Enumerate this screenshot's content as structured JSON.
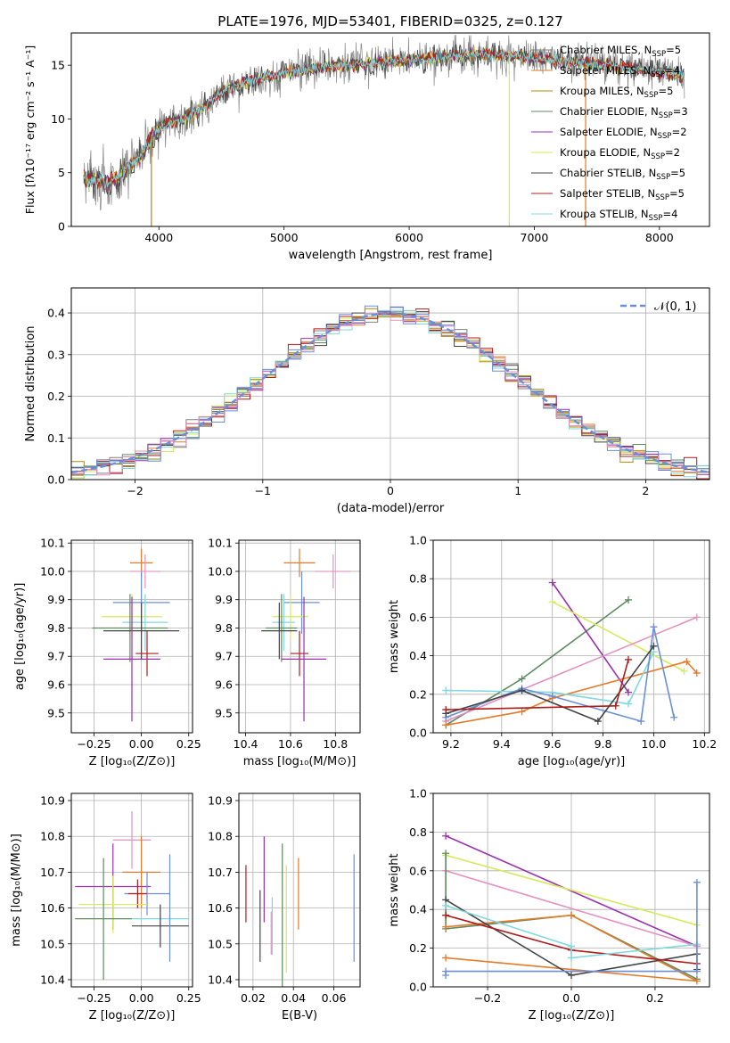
{
  "figure_title": "PLATE=1976, MJD=53401, FIBERID=0325, z=0.127",
  "colors": {
    "Chabrier MILES": "#808080",
    "Salpeter MILES": "#e37b2a",
    "Kroupa MILES": "#b8860b",
    "Chabrier ELODIE": "#5f8a5f",
    "Salpeter ELODIE": "#9b30b0",
    "Kroupa ELODIE": "#d4ea5a",
    "Chabrier STELIB": "#444444",
    "Salpeter STELIB": "#b01c1c",
    "Kroupa STELIB": "#7fd8e0",
    "blue": "#6a8fd8",
    "pink": "#e58fc0",
    "orange": "#e37b2a"
  },
  "chart_data": [
    {
      "id": "spectrum",
      "type": "line",
      "xlabel": "wavelength [Angstrom, rest frame]",
      "ylabel": "Flux [fλ10⁻¹⁷ erg cm⁻² s⁻¹ A⁻¹]",
      "xlim": [
        3300,
        8400
      ],
      "ylim": [
        0,
        18
      ],
      "xticks": [
        4000,
        5000,
        6000,
        7000,
        8000
      ],
      "yticks": [
        0,
        5,
        10,
        15
      ],
      "grid": false,
      "legend_position": "top-right",
      "continuum_knots": [
        [
          3400,
          4.5
        ],
        [
          3500,
          4.2
        ],
        [
          3600,
          4.0
        ],
        [
          3700,
          4.8
        ],
        [
          3850,
          6.5
        ],
        [
          3950,
          8.5
        ],
        [
          4050,
          9.5
        ],
        [
          4200,
          10.0
        ],
        [
          4350,
          11.0
        ],
        [
          4500,
          12.5
        ],
        [
          4700,
          13.5
        ],
        [
          4900,
          14.0
        ],
        [
          5100,
          14.5
        ],
        [
          5300,
          14.8
        ],
        [
          5500,
          15.0
        ],
        [
          5700,
          15.2
        ],
        [
          6000,
          15.5
        ],
        [
          6300,
          15.8
        ],
        [
          6600,
          16.0
        ],
        [
          7000,
          15.7
        ],
        [
          7400,
          15.2
        ],
        [
          7800,
          14.7
        ],
        [
          8200,
          14.0
        ]
      ],
      "series": [
        {
          "name": "Chabrier MILES, N$_{SSP}$=5",
          "label_main": "Chabrier MILES, N",
          "label_sub": "SSP",
          "label_tail": "=5",
          "color_key": "Chabrier MILES"
        },
        {
          "name": "Salpeter MILES, N$_{SSP}$=4",
          "label_main": "Salpeter MILES, N",
          "label_sub": "SSP",
          "label_tail": "=4",
          "color_key": "Salpeter MILES"
        },
        {
          "name": "Kroupa MILES, N$_{SSP}$=5",
          "label_main": "Kroupa MILES, N",
          "label_sub": "SSP",
          "label_tail": "=5",
          "color_key": "Kroupa MILES"
        },
        {
          "name": "Chabrier ELODIE, N$_{SSP}$=3",
          "label_main": "Chabrier ELODIE, N",
          "label_sub": "SSP",
          "label_tail": "=3",
          "color_key": "Chabrier ELODIE"
        },
        {
          "name": "Salpeter ELODIE, N$_{SSP}$=2",
          "label_main": "Salpeter ELODIE, N",
          "label_sub": "SSP",
          "label_tail": "=2",
          "color_key": "Salpeter ELODIE"
        },
        {
          "name": "Kroupa ELODIE, N$_{SSP}$=2",
          "label_main": "Kroupa ELODIE, N",
          "label_sub": "SSP",
          "label_tail": "=2",
          "color_key": "Kroupa ELODIE"
        },
        {
          "name": "Chabrier STELIB, N$_{SSP}$=5",
          "label_main": "Chabrier STELIB, N",
          "label_sub": "SSP",
          "label_tail": "=5",
          "color_key": "Chabrier STELIB"
        },
        {
          "name": "Salpeter STELIB, N$_{SSP}$=5",
          "label_main": "Salpeter STELIB, N",
          "label_sub": "SSP",
          "label_tail": "=5",
          "color_key": "Salpeter STELIB"
        },
        {
          "name": "Kroupa STELIB, N$_{SSP}$=4",
          "label_main": "Kroupa STELIB, N",
          "label_sub": "SSP",
          "label_tail": "=4",
          "color_key": "Kroupa STELIB"
        }
      ]
    },
    {
      "id": "residuals",
      "type": "histogram",
      "xlabel": "(data-model)/error",
      "ylabel": "Normed distribution",
      "xlim": [
        -2.5,
        2.5
      ],
      "ylim": [
        0,
        0.46
      ],
      "xticks": [
        -2,
        -1,
        0,
        1,
        2
      ],
      "yticks": [
        0.0,
        0.1,
        0.2,
        0.3,
        0.4
      ],
      "grid": true,
      "legend_position": "top-right",
      "reference": {
        "name": "𝒩(0, 1)",
        "mean": 0,
        "sigma": 1,
        "color": "#6a8fd8"
      },
      "bin_width": 0.1
    },
    {
      "id": "age_vs_Z",
      "type": "errorbar",
      "xlabel": "Z [log₁₀(Z/Z⊙)]",
      "ylabel": "age  [log₁₀(age/yr)]",
      "xlim": [
        -0.37,
        0.27
      ],
      "ylim": [
        9.43,
        10.11
      ],
      "xticks": [
        -0.25,
        0.0,
        0.25
      ],
      "xticklabels": [
        "−0.25",
        "0.00",
        "0.25"
      ],
      "yticks": [
        9.5,
        9.6,
        9.7,
        9.8,
        9.9,
        10.0,
        10.1
      ],
      "grid": true,
      "points": [
        {
          "x": 0.0,
          "y": 10.03,
          "xerr": 0.06,
          "yerr": 0.05,
          "color": "#e37b2a"
        },
        {
          "x": 0.02,
          "y": 10.0,
          "xerr": 0.08,
          "yerr": 0.06,
          "color": "#e58fc0"
        },
        {
          "x": 0.0,
          "y": 9.89,
          "xerr": 0.15,
          "yerr": 0.11,
          "color": "#6a8fd8"
        },
        {
          "x": -0.05,
          "y": 9.84,
          "xerr": 0.16,
          "yerr": 0.08,
          "color": "#d4ea5a"
        },
        {
          "x": 0.02,
          "y": 9.82,
          "xerr": 0.12,
          "yerr": 0.1,
          "color": "#7fd8e0"
        },
        {
          "x": -0.06,
          "y": 9.8,
          "xerr": 0.2,
          "yerr": 0.12,
          "color": "#5f8a5f"
        },
        {
          "x": 0.0,
          "y": 9.79,
          "xerr": 0.2,
          "yerr": 0.1,
          "color": "#444444"
        },
        {
          "x": 0.03,
          "y": 9.71,
          "xerr": 0.06,
          "yerr": 0.08,
          "color": "#b01c1c"
        },
        {
          "x": -0.05,
          "y": 9.69,
          "xerr": 0.15,
          "yerr": 0.22,
          "color": "#9b30b0"
        }
      ]
    },
    {
      "id": "age_vs_mass",
      "type": "errorbar",
      "xlabel": "mass [log₁₀(M/M⊙)]",
      "ylabel": "",
      "xlim": [
        10.37,
        10.91
      ],
      "ylim": [
        9.43,
        10.11
      ],
      "xticks": [
        10.4,
        10.6,
        10.8
      ],
      "yticks": [
        9.5,
        9.6,
        9.7,
        9.8,
        9.9,
        10.0,
        10.1
      ],
      "grid": true,
      "points": [
        {
          "x": 10.64,
          "y": 10.03,
          "xerr": 0.07,
          "yerr": 0.05,
          "color": "#e37b2a"
        },
        {
          "x": 10.79,
          "y": 10.0,
          "xerr": 0.08,
          "yerr": 0.06,
          "color": "#e58fc0"
        },
        {
          "x": 10.65,
          "y": 9.89,
          "xerr": 0.08,
          "yerr": 0.11,
          "color": "#6a8fd8"
        },
        {
          "x": 10.6,
          "y": 9.84,
          "xerr": 0.08,
          "yerr": 0.08,
          "color": "#d4ea5a"
        },
        {
          "x": 10.57,
          "y": 9.82,
          "xerr": 0.05,
          "yerr": 0.1,
          "color": "#7fd8e0"
        },
        {
          "x": 10.56,
          "y": 9.8,
          "xerr": 0.07,
          "yerr": 0.12,
          "color": "#5f8a5f"
        },
        {
          "x": 10.55,
          "y": 9.79,
          "xerr": 0.08,
          "yerr": 0.1,
          "color": "#444444"
        },
        {
          "x": 10.64,
          "y": 9.71,
          "xerr": 0.04,
          "yerr": 0.08,
          "color": "#b01c1c"
        },
        {
          "x": 10.66,
          "y": 9.69,
          "xerr": 0.1,
          "yerr": 0.22,
          "color": "#9b30b0"
        }
      ]
    },
    {
      "id": "weight_vs_age",
      "type": "line",
      "xlabel": "age  [log₁₀(age/yr)]",
      "ylabel": "mass weight",
      "xlim": [
        9.13,
        10.22
      ],
      "ylim": [
        0,
        1.0
      ],
      "xticks": [
        9.2,
        9.4,
        9.6,
        9.8,
        10.0,
        10.2
      ],
      "yticks": [
        0.0,
        0.2,
        0.4,
        0.6,
        0.8,
        1.0
      ],
      "grid": true,
      "series": [
        {
          "color": "#5f8a5f",
          "points": [
            [
              9.18,
              0.04
            ],
            [
              9.48,
              0.28
            ],
            [
              9.9,
              0.69
            ]
          ]
        },
        {
          "color": "#9b30b0",
          "points": [
            [
              9.6,
              0.78
            ],
            [
              9.9,
              0.21
            ]
          ]
        },
        {
          "color": "#d4ea5a",
          "points": [
            [
              9.6,
              0.68
            ],
            [
              10.12,
              0.32
            ]
          ]
        },
        {
          "color": "#e58fc0",
          "points": [
            [
              9.18,
              0.06
            ],
            [
              10.17,
              0.6
            ]
          ]
        },
        {
          "color": "#e37b2a",
          "points": [
            [
              9.18,
              0.04
            ],
            [
              9.48,
              0.11
            ],
            [
              9.6,
              0.18
            ],
            [
              10.13,
              0.37
            ],
            [
              10.17,
              0.31
            ]
          ]
        },
        {
          "color": "#7fd8e0",
          "points": [
            [
              9.18,
              0.22
            ],
            [
              9.6,
              0.21
            ],
            [
              9.9,
              0.15
            ],
            [
              10.0,
              0.42
            ]
          ]
        },
        {
          "color": "#6a8fd8",
          "points": [
            [
              9.18,
              0.08
            ],
            [
              9.48,
              0.23
            ],
            [
              9.6,
              0.19
            ],
            [
              9.95,
              0.06
            ],
            [
              10.0,
              0.55
            ],
            [
              10.08,
              0.08
            ]
          ]
        },
        {
          "color": "#444444",
          "points": [
            [
              9.18,
              0.1
            ],
            [
              9.48,
              0.22
            ],
            [
              9.78,
              0.06
            ],
            [
              10.0,
              0.45
            ]
          ]
        },
        {
          "color": "#b01c1c",
          "points": [
            [
              9.18,
              0.12
            ],
            [
              9.85,
              0.14
            ],
            [
              9.9,
              0.38
            ]
          ]
        }
      ]
    },
    {
      "id": "mass_vs_Z",
      "type": "errorbar",
      "xlabel": "Z [log₁₀(Z/Z⊙)]",
      "ylabel": "mass [log₁₀(M/M⊙)]",
      "xlim": [
        -0.37,
        0.27
      ],
      "ylim": [
        10.38,
        10.92
      ],
      "xticks": [
        -0.25,
        0.0,
        0.25
      ],
      "xticklabels": [
        "−0.25",
        "0.00",
        "0.25"
      ],
      "yticks": [
        10.4,
        10.5,
        10.6,
        10.7,
        10.8,
        10.9
      ],
      "grid": true,
      "points": [
        {
          "x": -0.05,
          "y": 10.79,
          "xerr": 0.1,
          "yerr": 0.08,
          "color": "#e58fc0"
        },
        {
          "x": 0.0,
          "y": 10.7,
          "xerr": 0.1,
          "yerr": 0.1,
          "color": "#e37b2a"
        },
        {
          "x": -0.15,
          "y": 10.66,
          "xerr": 0.2,
          "yerr": 0.12,
          "color": "#9b30b0"
        },
        {
          "x": 0.03,
          "y": 10.64,
          "xerr": 0.12,
          "yerr": 0.06,
          "color": "#6a8fd8"
        },
        {
          "x": -0.02,
          "y": 10.64,
          "xerr": 0.05,
          "yerr": 0.04,
          "color": "#b01c1c"
        },
        {
          "x": -0.15,
          "y": 10.61,
          "xerr": 0.18,
          "yerr": 0.08,
          "color": "#d4ea5a"
        },
        {
          "x": -0.2,
          "y": 10.57,
          "xerr": 0.15,
          "yerr": 0.17,
          "color": "#5f8a5f"
        },
        {
          "x": 0.1,
          "y": 10.57,
          "xerr": 0.15,
          "yerr": 0.04,
          "color": "#7fd8e0"
        },
        {
          "x": 0.1,
          "y": 10.55,
          "xerr": 0.15,
          "yerr": 0.06,
          "color": "#444444"
        },
        {
          "x": 0.15,
          "y": 10.6,
          "xerr": 0.0,
          "yerr": 0.15,
          "color": "#6a8fd8"
        }
      ]
    },
    {
      "id": "mass_vs_EBV",
      "type": "errorbar",
      "xlabel": "E(B-V)",
      "ylabel": "",
      "xlim": [
        0.013,
        0.073
      ],
      "ylim": [
        10.38,
        10.92
      ],
      "xticks": [
        0.02,
        0.04,
        0.06
      ],
      "yticks": [
        10.4,
        10.5,
        10.6,
        10.7,
        10.8,
        10.9
      ],
      "grid": true,
      "points": [
        {
          "x": 0.0165,
          "y": 10.64,
          "yerr": 0.08,
          "color": "#b01c1c"
        },
        {
          "x": 0.0235,
          "y": 10.55,
          "yerr": 0.1,
          "color": "#444444"
        },
        {
          "x": 0.0255,
          "y": 10.68,
          "yerr": 0.12,
          "color": "#9b30b0"
        },
        {
          "x": 0.029,
          "y": 10.53,
          "yerr": 0.06,
          "color": "#e58fc0"
        },
        {
          "x": 0.0295,
          "y": 10.55,
          "yerr": 0.08,
          "color": "#7fd8e0"
        },
        {
          "x": 0.0345,
          "y": 10.58,
          "yerr": 0.2,
          "color": "#5f8a5f"
        },
        {
          "x": 0.0365,
          "y": 10.57,
          "yerr": 0.15,
          "color": "#d4ea5a"
        },
        {
          "x": 0.0425,
          "y": 10.64,
          "yerr": 0.1,
          "color": "#e37b2a"
        },
        {
          "x": 0.07,
          "y": 10.6,
          "yerr": 0.15,
          "color": "#6a8fd8"
        }
      ]
    },
    {
      "id": "weight_vs_Z",
      "type": "line",
      "xlabel": "Z [log₁₀(Z/Z⊙)]",
      "ylabel": "mass weight",
      "xlim": [
        -0.33,
        0.33
      ],
      "ylim": [
        0,
        1.0
      ],
      "xticks": [
        -0.2,
        0.0,
        0.2
      ],
      "xticklabels": [
        "−0.2",
        "0.0",
        "0.2"
      ],
      "yticks": [
        0.0,
        0.2,
        0.4,
        0.6,
        0.8,
        1.0
      ],
      "grid": true,
      "series": [
        {
          "color": "#9b30b0",
          "points": [
            [
              -0.3,
              0.78
            ],
            [
              0.3,
              0.21
            ]
          ]
        },
        {
          "color": "#d4ea5a",
          "points": [
            [
              -0.3,
              0.68
            ],
            [
              0.3,
              0.32
            ]
          ]
        },
        {
          "color": "#e58fc0",
          "points": [
            [
              -0.3,
              0.6
            ],
            [
              0.3,
              0.21
            ]
          ]
        },
        {
          "color": "#5f8a5f",
          "points": [
            [
              -0.3,
              0.69
            ],
            [
              -0.3,
              0.3
            ],
            [
              0.0,
              0.37
            ],
            [
              0.3,
              0.04
            ]
          ]
        },
        {
          "color": "#e37b2a",
          "points": [
            [
              -0.3,
              0.31
            ],
            [
              0.0,
              0.37
            ],
            [
              0.3,
              0.03
            ],
            [
              -0.3,
              0.15
            ]
          ]
        },
        {
          "color": "#444444",
          "points": [
            [
              -0.3,
              0.45
            ],
            [
              0.0,
              0.06
            ],
            [
              0.3,
              0.17
            ],
            [
              0.3,
              0.09
            ]
          ]
        },
        {
          "color": "#b01c1c",
          "points": [
            [
              -0.3,
              0.37
            ],
            [
              0.0,
              0.19
            ],
            [
              0.3,
              0.12
            ]
          ]
        },
        {
          "color": "#7fd8e0",
          "points": [
            [
              -0.3,
              0.42
            ],
            [
              0.0,
              0.21
            ],
            [
              0.0,
              0.15
            ],
            [
              0.3,
              0.22
            ]
          ]
        },
        {
          "color": "#6a8fd8",
          "points": [
            [
              -0.3,
              0.06
            ],
            [
              -0.3,
              0.08
            ],
            [
              0.3,
              0.08
            ],
            [
              0.3,
              0.54
            ]
          ]
        }
      ]
    }
  ]
}
